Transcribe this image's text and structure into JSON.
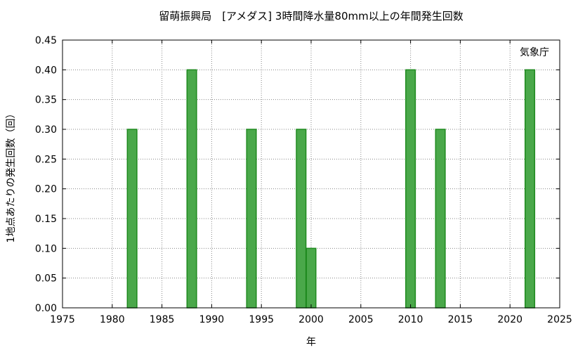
{
  "chart_data": {
    "type": "bar",
    "title": "留萌振興局　[アメダス] 3時間降水量80mm以上の年間発生回数",
    "xlabel": "年",
    "ylabel": "1地点あたりの発生回数（回）",
    "credit": "気象庁",
    "xlim": [
      1975,
      2025
    ],
    "ylim": [
      0,
      0.45
    ],
    "x_ticks": [
      "1975",
      "1980",
      "1985",
      "1990",
      "1995",
      "2000",
      "2005",
      "2010",
      "2015",
      "2020",
      "2025"
    ],
    "y_ticks": [
      "0.00",
      "0.05",
      "0.10",
      "0.15",
      "0.20",
      "0.25",
      "0.30",
      "0.35",
      "0.40",
      "0.45"
    ],
    "grid": true,
    "bar_color": "#4aa84a",
    "bar_edge_color": "#1e8a1e",
    "points": [
      {
        "x": 1982,
        "y": 0.3
      },
      {
        "x": 1988,
        "y": 0.4
      },
      {
        "x": 1994,
        "y": 0.3
      },
      {
        "x": 1999,
        "y": 0.3
      },
      {
        "x": 2000,
        "y": 0.1
      },
      {
        "x": 2010,
        "y": 0.4
      },
      {
        "x": 2013,
        "y": 0.3
      },
      {
        "x": 2022,
        "y": 0.4
      }
    ]
  }
}
